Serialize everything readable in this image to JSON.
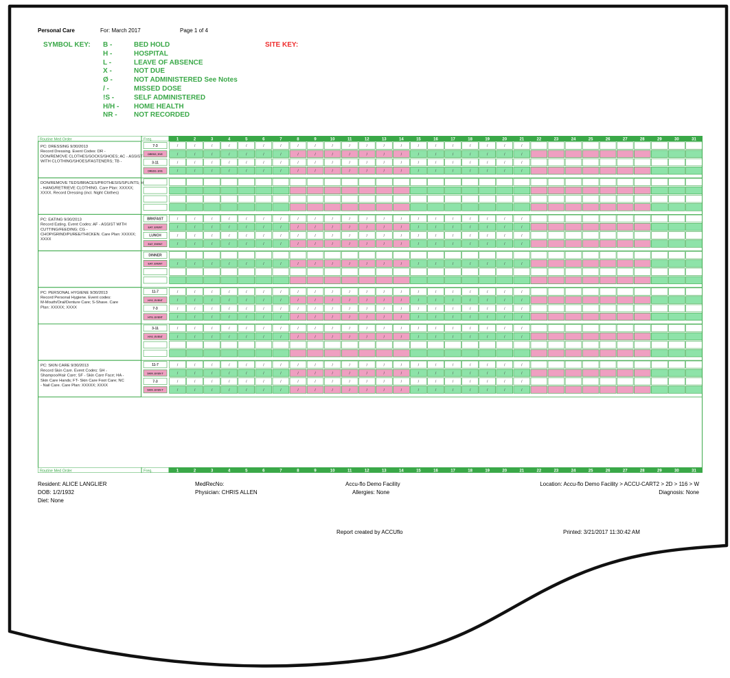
{
  "header": {
    "report_title": "Personal Care",
    "for_month": "For: March 2017",
    "page": "Page 1 of 4"
  },
  "symbol_key": {
    "title": "SYMBOL KEY:",
    "items": [
      {
        "code": "B -",
        "label": "BED HOLD"
      },
      {
        "code": "H -",
        "label": "HOSPITAL"
      },
      {
        "code": "L -",
        "label": "LEAVE OF ABSENCE"
      },
      {
        "code": "X -",
        "label": "NOT DUE"
      },
      {
        "code": "Ø -",
        "label": "NOT ADMINISTERED See Notes"
      },
      {
        "code": "/ -",
        "label": "MISSED DOSE"
      },
      {
        "code": "!S -",
        "label": "SELF ADMINISTERED"
      },
      {
        "code": "H/H -",
        "label": "HOME HEALTH"
      },
      {
        "code": "NR -",
        "label": "NOT RECORDED"
      }
    ]
  },
  "site_key": {
    "title": "SITE KEY:"
  },
  "grid": {
    "col_order_label": "Routine Med Order",
    "col_freq_label": "Freq.",
    "days": [
      "1",
      "2",
      "3",
      "4",
      "5",
      "6",
      "7",
      "8",
      "9",
      "10",
      "11",
      "12",
      "13",
      "14",
      "15",
      "16",
      "17",
      "18",
      "19",
      "20",
      "21",
      "22",
      "23",
      "24",
      "25",
      "26",
      "27",
      "28",
      "29",
      "30",
      "31"
    ],
    "entry_mark": "/",
    "colors": {
      "green": "#8ee3a9",
      "pink": "#ef9fc1",
      "header_green": "#3aa848",
      "border": "#3aa848"
    },
    "pink_day_ranges": [
      [
        8,
        14
      ],
      [
        22,
        28
      ]
    ],
    "blocks": [
      {
        "order": "PC: DRESSING 9/30/2013\nRecord Dressing.  Event Codes:  DR - DON/REMOVE CLOTHES/SOCKS/SHOES;  AC - ASSIST WITH CLOTHING/SHOES/FASTENERS; TB -",
        "rows": [
          {
            "freq": "7-3",
            "kind": "white",
            "filled": true
          },
          {
            "freq": "DRESS_EVE",
            "kind": "green",
            "filled": true
          },
          {
            "freq": "3-11",
            "kind": "white",
            "filled": true
          },
          {
            "freq": "DRESS_EVE",
            "kind": "green",
            "filled": true
          }
        ]
      },
      {
        "order": "DON/REMOVE TEDS/BRACES/PROTHESIS/SPLINTS;  HR - HANG/RETRIEVE CLOTHING. Care Plan:  XXXXX;  XXXX.  Record Dressing (incl. Night Clothes)",
        "rows": [
          {
            "freq": "",
            "kind": "white",
            "filled": false
          },
          {
            "freq": "",
            "kind": "green",
            "filled": false
          },
          {
            "freq": "",
            "kind": "white",
            "filled": false
          },
          {
            "freq": "",
            "kind": "green",
            "filled": false
          }
        ]
      },
      {
        "order": "PC: EATING 9/30/2013\nRecord Eating.  Event Codes:  AF - ASSIST WITH CUTTING/FEEDING; CG - CHOP/GRIND/PUREE/THICKEN.  Care Plan:  XXXXX;  XXXX",
        "rows": [
          {
            "freq": "BRKFAST",
            "kind": "white",
            "filled": true
          },
          {
            "freq": "EAT_EVENT",
            "kind": "green",
            "filled": true
          },
          {
            "freq": "LUNCH",
            "kind": "white",
            "filled": true
          },
          {
            "freq": "EAT_EVENT",
            "kind": "green",
            "filled": true
          }
        ]
      },
      {
        "order": "",
        "rows": [
          {
            "freq": "DINNER",
            "kind": "white",
            "filled": false
          },
          {
            "freq": "EAT_EVENT",
            "kind": "green",
            "filled": true
          },
          {
            "freq": "",
            "kind": "white",
            "filled": false
          },
          {
            "freq": "",
            "kind": "green",
            "filled": false
          }
        ]
      },
      {
        "order": "PC: PERSONAL HYGIENE 9/30/2013\nRecord Personal Hygiene.  Event codes: M-Mouth/Oral/Denture Care; S-Shave. Care Plan:  XXXXX;  XXXX",
        "rows": [
          {
            "freq": "11-7",
            "kind": "white",
            "filled": true
          },
          {
            "freq": "HYG_EVENT",
            "kind": "green",
            "filled": true
          },
          {
            "freq": "7-3",
            "kind": "white",
            "filled": true
          },
          {
            "freq": "HYG_EVENT",
            "kind": "green",
            "filled": true
          }
        ]
      },
      {
        "order": "",
        "rows": [
          {
            "freq": "3-11",
            "kind": "white",
            "filled": true
          },
          {
            "freq": "HYG_EVENT",
            "kind": "green",
            "filled": true
          },
          {
            "freq": "",
            "kind": "white",
            "filled": false
          },
          {
            "freq": "",
            "kind": "green",
            "filled": false
          }
        ]
      },
      {
        "order": "PC: SKIN CARE 9/30/2013\nRecord Skin Care.  Event Codes:  SH - Shampoo/Hair Care;  SF - Skin Care Face; HA - Skin Care Hands; FT- Skin Care Foot Care; NC - Nail Care. Care Plan:  XXXXX;  XXXX",
        "rows": [
          {
            "freq": "11-7",
            "kind": "white",
            "filled": true
          },
          {
            "freq": "SKIN_EVEN T",
            "kind": "green",
            "filled": true
          },
          {
            "freq": "7-3",
            "kind": "white",
            "filled": true
          },
          {
            "freq": "SKIN_EVEN T",
            "kind": "green",
            "filled": true
          }
        ]
      }
    ]
  },
  "footer": {
    "resident": "Resident: ALICE LANGLIER",
    "dob": "DOB: 1/2/1932",
    "diet": "Diet: None",
    "medrecno": "MedRecNo:",
    "physician": "Physician: CHRIS  ALLEN",
    "facility": "Accu-flo Demo Facility",
    "allergies": "Allergies: None",
    "location": "Location: Accu-flo Demo Facility > ACCU-CART2 > 2D > 116 > W",
    "diagnosis": "Diagnosis: None",
    "report_created": "Report created by ACCUflo",
    "printed": "Printed: 3/21/2017 11:30:42 AM"
  }
}
